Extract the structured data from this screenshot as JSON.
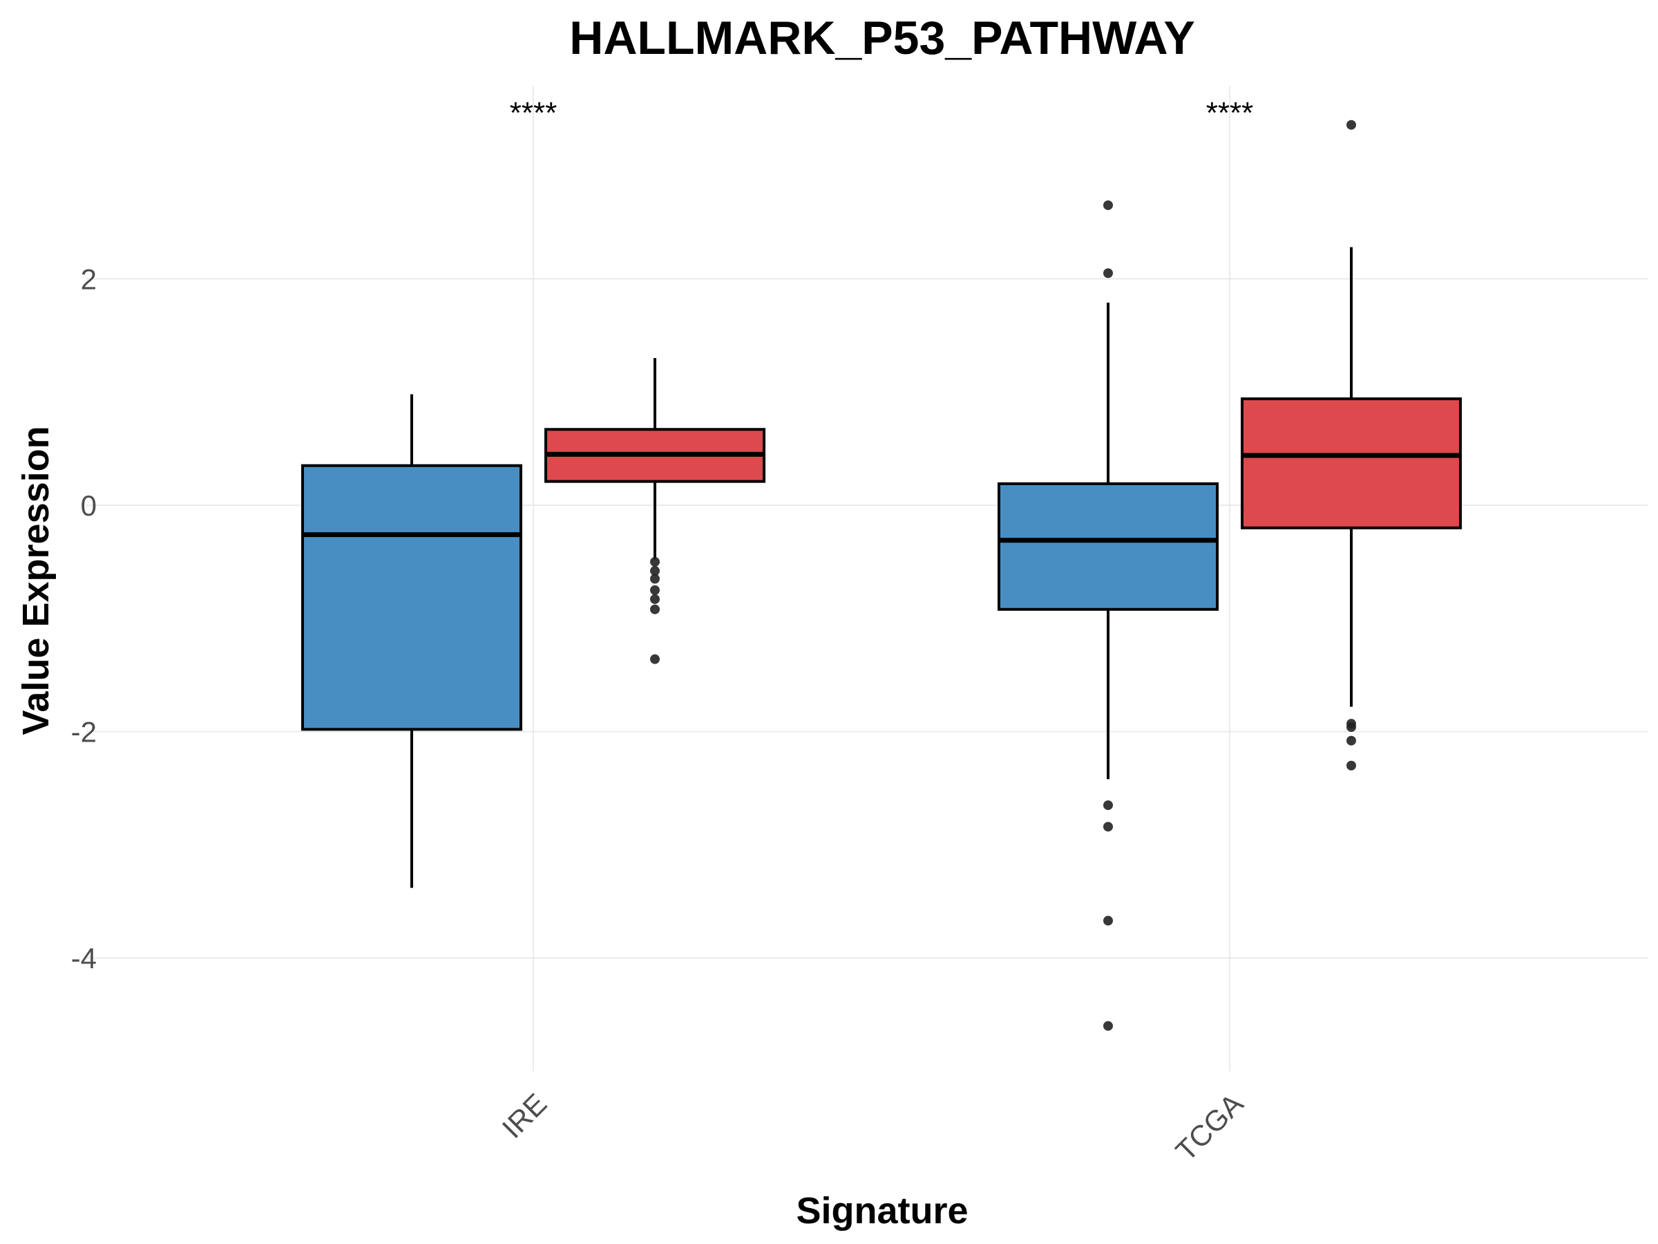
{
  "chart_data": {
    "type": "box",
    "title": "HALLMARK_P53_PATHWAY",
    "xlabel": "Signature",
    "ylabel": "Value Expression",
    "ylim": [
      -5.0,
      3.7
    ],
    "yticks": [
      2,
      0,
      -2,
      -4
    ],
    "ytick_labels": [
      "2",
      "0",
      "-2",
      "-4"
    ],
    "grid": true,
    "legend": "none",
    "categories": [
      "IRE",
      "TCGA"
    ],
    "significance": [
      "****",
      "****"
    ],
    "series": [
      {
        "color": "#3a84bd",
        "boxes": [
          {
            "whisker_low": -3.38,
            "q1": -1.98,
            "median": -0.26,
            "q3": 0.35,
            "whisker_high": 0.98,
            "outliers": []
          },
          {
            "whisker_low": -2.42,
            "q1": -0.92,
            "median": -0.31,
            "q3": 0.19,
            "whisker_high": 1.79,
            "outliers": [
              2.65,
              2.05,
              -2.65,
              -2.84,
              -3.67,
              -4.6
            ]
          }
        ]
      },
      {
        "color": "#da3a3e",
        "boxes": [
          {
            "whisker_low": -0.48,
            "q1": 0.21,
            "median": 0.45,
            "q3": 0.67,
            "whisker_high": 1.3,
            "outliers": [
              -0.5,
              -0.58,
              -0.65,
              -0.75,
              -0.83,
              -0.92,
              -1.36
            ]
          },
          {
            "whisker_low": -1.78,
            "q1": -0.2,
            "median": 0.44,
            "q3": 0.94,
            "whisker_high": 2.28,
            "outliers": [
              3.36,
              -1.93,
              -1.96,
              -2.08,
              -2.3
            ]
          }
        ]
      }
    ]
  }
}
